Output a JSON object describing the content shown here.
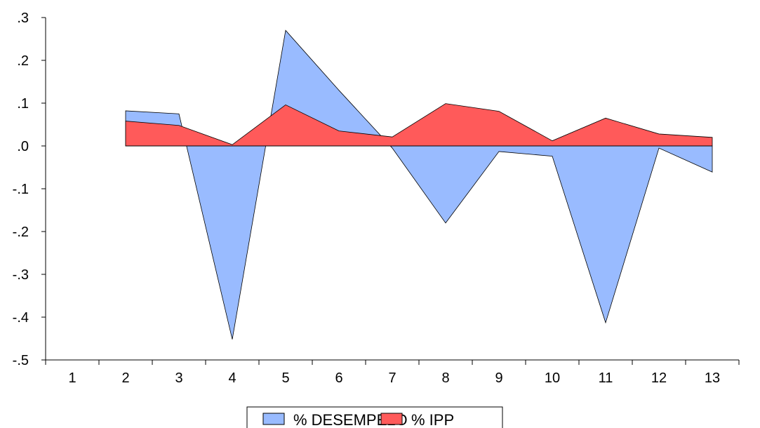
{
  "chart_data": {
    "type": "area",
    "categories": [
      "1",
      "2",
      "3",
      "4",
      "5",
      "6",
      "7",
      "8",
      "9",
      "10",
      "11",
      "12",
      "13"
    ],
    "ylim": [
      -0.5,
      0.3
    ],
    "yticks": [
      ".3",
      ".2",
      ".1",
      ".0",
      "-.1",
      "-.2",
      "-.3",
      "-.4",
      "-.5"
    ],
    "series": [
      {
        "name": "% DESEMPELO",
        "color": "#99bbff",
        "values": [
          null,
          0.082,
          0.075,
          -0.452,
          0.27,
          0.13,
          -0.005,
          -0.18,
          -0.013,
          -0.024,
          -0.413,
          -0.005,
          -0.061
        ]
      },
      {
        "name": "% IPP",
        "color": "#ff5a5a",
        "values": [
          null,
          0.058,
          0.048,
          0.003,
          0.096,
          0.035,
          0.021,
          0.099,
          0.081,
          0.012,
          0.065,
          0.028,
          0.02
        ]
      }
    ],
    "xlabel": "",
    "ylabel": "",
    "grid": false,
    "legend": "bottom-center"
  }
}
